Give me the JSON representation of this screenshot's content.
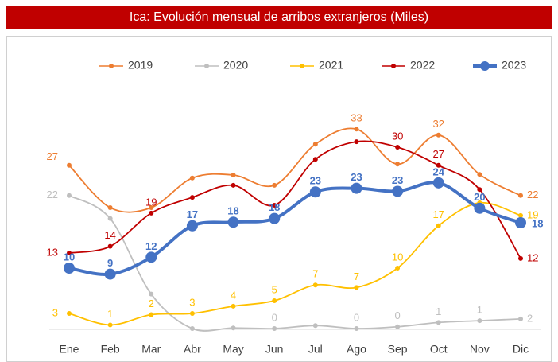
{
  "chart_data": {
    "type": "line",
    "title": "Ica: Evolución mensual de arribos extranjeros (Miles)",
    "categories": [
      "Ene",
      "Feb",
      "Mar",
      "Abr",
      "May",
      "Jun",
      "Jul",
      "Ago",
      "Sep",
      "Oct",
      "Nov",
      "Dic"
    ],
    "ylim": [
      0,
      40
    ],
    "legend": "top",
    "smooth": true,
    "series": [
      {
        "name": "2019",
        "color": "#ed7d31",
        "values": [
          27,
          20,
          20,
          24.9,
          25.4,
          23.7,
          30.5,
          33,
          27.2,
          32,
          25.5,
          22
        ],
        "value_labels": [
          "27",
          null,
          null,
          null,
          null,
          null,
          null,
          "33",
          null,
          "32",
          null,
          "22"
        ]
      },
      {
        "name": "2020",
        "color": "#bfbfbf",
        "values": [
          22,
          18.2,
          5.7,
          0,
          0.1,
          0,
          0.5,
          0,
          0.3,
          1,
          1.3,
          1.6
        ],
        "value_labels": [
          "22",
          null,
          null,
          null,
          null,
          "0",
          null,
          "0",
          "0",
          "1",
          "1",
          "2"
        ]
      },
      {
        "name": "2021",
        "color": "#ffc000",
        "values": [
          2.5,
          0.6,
          2.3,
          2.5,
          3.7,
          4.6,
          7.2,
          6.8,
          10,
          17,
          20.8,
          18.7
        ],
        "value_labels": [
          "3",
          "1",
          "2",
          "3",
          "4",
          "5",
          "7",
          "7",
          "10",
          "17",
          null,
          "19"
        ]
      },
      {
        "name": "2022",
        "color": "#c00000",
        "values": [
          12.5,
          13.6,
          19.1,
          21.7,
          23.7,
          20.4,
          28,
          30.9,
          30,
          27,
          23,
          11.6
        ],
        "value_labels": [
          "13",
          "14",
          "19",
          null,
          null,
          null,
          null,
          null,
          "30",
          "27",
          null,
          "12"
        ]
      },
      {
        "name": "2023",
        "color": "#4472c4",
        "values": [
          10,
          9,
          11.8,
          17,
          17.6,
          18.2,
          22.6,
          23.2,
          22.7,
          24.1,
          19.9,
          17.5
        ],
        "value_labels": [
          "10",
          "9",
          "12",
          "17",
          "18",
          "18",
          "23",
          "23",
          "23",
          "24",
          "20",
          "18"
        ]
      }
    ]
  }
}
